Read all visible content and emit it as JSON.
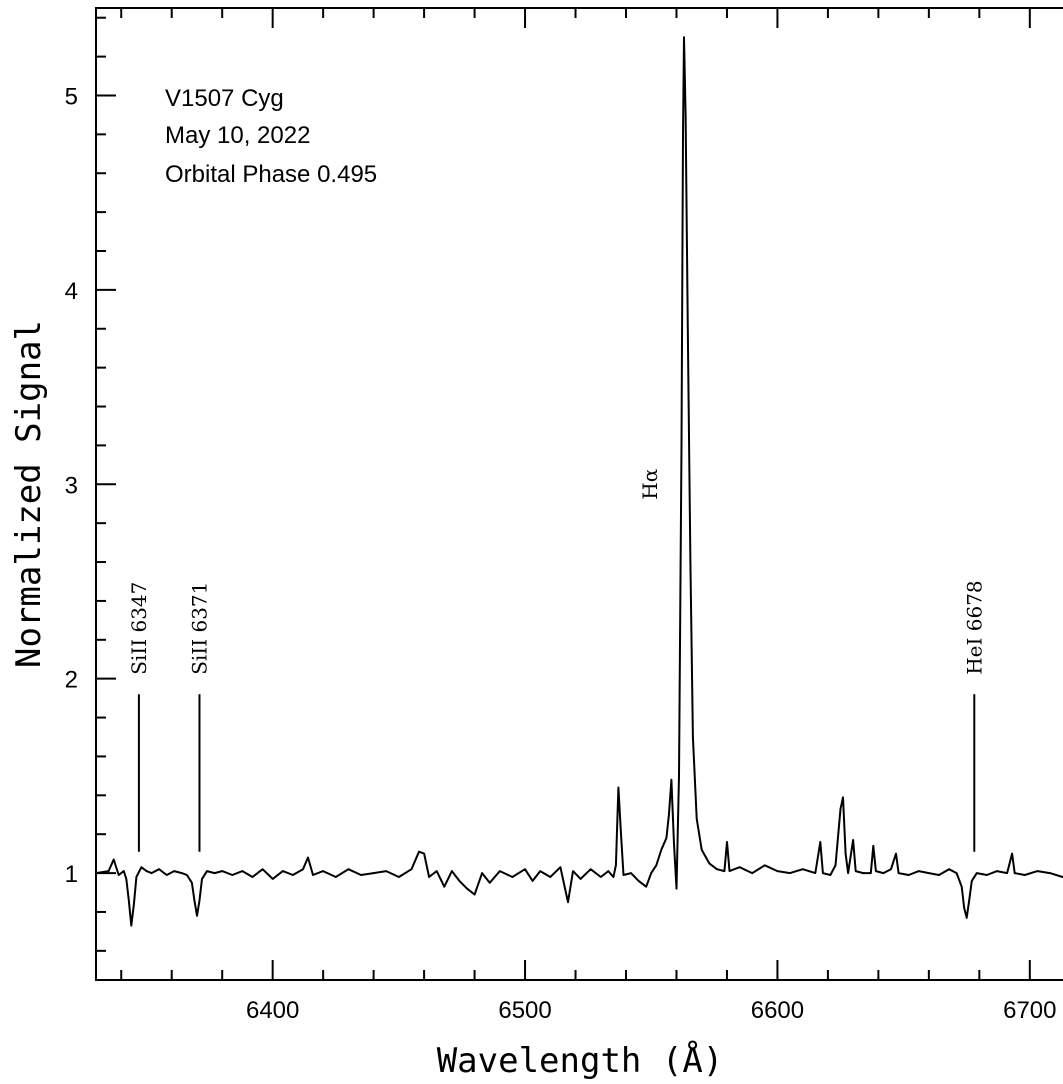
{
  "chart_data": {
    "type": "line",
    "xlabel": "Wavelength (Å)",
    "ylabel": "Normalized Signal",
    "xlim": [
      6330,
      6750
    ],
    "ylim": [
      0.45,
      5.45
    ],
    "x_ticks": [
      6400,
      6500,
      6600,
      6700
    ],
    "y_ticks": [
      1,
      2,
      3,
      4,
      5
    ],
    "grid": false,
    "annotations": [
      "V1507 Cyg",
      "May 10, 2022",
      "Orbital Phase 0.495"
    ],
    "line_ids": [
      {
        "label": "SiII 6347",
        "wavelength": 6347
      },
      {
        "label": "SiII 6371",
        "wavelength": 6371
      },
      {
        "label": "Hα",
        "wavelength": 6563
      },
      {
        "label": "HeI 6678",
        "wavelength": 6678
      }
    ],
    "series": [
      {
        "color": "#000000",
        "points": [
          [
            6330,
            1.0
          ],
          [
            6335,
            1.01
          ],
          [
            6337,
            1.07
          ],
          [
            6339,
            0.99
          ],
          [
            6341,
            1.01
          ],
          [
            6342,
            0.97
          ],
          [
            6343,
            0.86
          ],
          [
            6344,
            0.73
          ],
          [
            6345,
            0.84
          ],
          [
            6346,
            0.98
          ],
          [
            6348,
            1.03
          ],
          [
            6350,
            1.01
          ],
          [
            6352,
            1.0
          ],
          [
            6355,
            1.02
          ],
          [
            6358,
            0.99
          ],
          [
            6361,
            1.01
          ],
          [
            6364,
            1.0
          ],
          [
            6366,
            0.99
          ],
          [
            6368,
            0.95
          ],
          [
            6369,
            0.86
          ],
          [
            6370,
            0.78
          ],
          [
            6371,
            0.86
          ],
          [
            6372,
            0.97
          ],
          [
            6374,
            1.01
          ],
          [
            6377,
            1.0
          ],
          [
            6380,
            1.01
          ],
          [
            6384,
            0.99
          ],
          [
            6388,
            1.01
          ],
          [
            6392,
            0.98
          ],
          [
            6396,
            1.02
          ],
          [
            6400,
            0.97
          ],
          [
            6404,
            1.01
          ],
          [
            6408,
            0.99
          ],
          [
            6412,
            1.02
          ],
          [
            6414,
            1.08
          ],
          [
            6416,
            0.99
          ],
          [
            6420,
            1.01
          ],
          [
            6425,
            0.98
          ],
          [
            6430,
            1.02
          ],
          [
            6435,
            0.99
          ],
          [
            6440,
            1.0
          ],
          [
            6445,
            1.01
          ],
          [
            6450,
            0.98
          ],
          [
            6455,
            1.02
          ],
          [
            6458,
            1.11
          ],
          [
            6460,
            1.1
          ],
          [
            6462,
            0.98
          ],
          [
            6465,
            1.01
          ],
          [
            6468,
            0.93
          ],
          [
            6471,
            1.01
          ],
          [
            6474,
            0.96
          ],
          [
            6477,
            0.92
          ],
          [
            6480,
            0.89
          ],
          [
            6483,
            1.0
          ],
          [
            6486,
            0.95
          ],
          [
            6490,
            1.01
          ],
          [
            6495,
            0.98
          ],
          [
            6500,
            1.02
          ],
          [
            6503,
            0.96
          ],
          [
            6506,
            1.01
          ],
          [
            6510,
            0.98
          ],
          [
            6514,
            1.03
          ],
          [
            6517,
            0.85
          ],
          [
            6519,
            1.01
          ],
          [
            6522,
            0.97
          ],
          [
            6526,
            1.02
          ],
          [
            6530,
            0.98
          ],
          [
            6533,
            1.01
          ],
          [
            6535,
            0.98
          ],
          [
            6536,
            1.04
          ],
          [
            6537,
            1.44
          ],
          [
            6538,
            1.2
          ],
          [
            6539,
            0.99
          ],
          [
            6542,
            1.0
          ],
          [
            6545,
            0.96
          ],
          [
            6548,
            0.93
          ],
          [
            6550,
            1.0
          ],
          [
            6552,
            1.04
          ],
          [
            6554,
            1.12
          ],
          [
            6556,
            1.18
          ],
          [
            6557,
            1.3
          ],
          [
            6558,
            1.48
          ],
          [
            6559,
            1.15
          ],
          [
            6560,
            0.92
          ],
          [
            6561,
            1.5
          ],
          [
            6562,
            3.2
          ],
          [
            6562.6,
            4.8
          ],
          [
            6563,
            5.3
          ],
          [
            6563.6,
            4.9
          ],
          [
            6564.5,
            3.8
          ],
          [
            6565.5,
            2.6
          ],
          [
            6566.5,
            1.7
          ],
          [
            6568,
            1.28
          ],
          [
            6570,
            1.12
          ],
          [
            6573,
            1.05
          ],
          [
            6576,
            1.02
          ],
          [
            6579,
            1.01
          ],
          [
            6580,
            1.16
          ],
          [
            6581,
            1.01
          ],
          [
            6585,
            1.03
          ],
          [
            6590,
            1.0
          ],
          [
            6595,
            1.04
          ],
          [
            6600,
            1.01
          ],
          [
            6605,
            1.0
          ],
          [
            6610,
            1.02
          ],
          [
            6615,
            1.0
          ],
          [
            6617,
            1.16
          ],
          [
            6618,
            1.0
          ],
          [
            6621,
            0.99
          ],
          [
            6623,
            1.04
          ],
          [
            6625,
            1.33
          ],
          [
            6626,
            1.39
          ],
          [
            6627,
            1.1
          ],
          [
            6628,
            1.0
          ],
          [
            6630,
            1.17
          ],
          [
            6631,
            1.01
          ],
          [
            6634,
            1.0
          ],
          [
            6637,
            1.0
          ],
          [
            6638,
            1.14
          ],
          [
            6639,
            1.01
          ],
          [
            6642,
            1.0
          ],
          [
            6645,
            1.02
          ],
          [
            6647,
            1.1
          ],
          [
            6648,
            1.0
          ],
          [
            6652,
            0.99
          ],
          [
            6656,
            1.01
          ],
          [
            6660,
            1.0
          ],
          [
            6664,
            0.99
          ],
          [
            6668,
            1.02
          ],
          [
            6671,
            1.0
          ],
          [
            6673,
            0.93
          ],
          [
            6674,
            0.82
          ],
          [
            6675,
            0.77
          ],
          [
            6676,
            0.86
          ],
          [
            6677,
            0.96
          ],
          [
            6679,
            1.0
          ],
          [
            6683,
            0.99
          ],
          [
            6687,
            1.01
          ],
          [
            6691,
            1.0
          ],
          [
            6693,
            1.1
          ],
          [
            6694,
            1.0
          ],
          [
            6698,
            0.99
          ],
          [
            6703,
            1.01
          ],
          [
            6708,
            1.0
          ],
          [
            6713,
            0.98
          ],
          [
            6718,
            1.01
          ],
          [
            6723,
            0.99
          ],
          [
            6728,
            1.01
          ],
          [
            6733,
            1.0
          ],
          [
            6738,
            1.03
          ],
          [
            6743,
            0.99
          ],
          [
            6750,
            1.0
          ]
        ]
      }
    ]
  }
}
